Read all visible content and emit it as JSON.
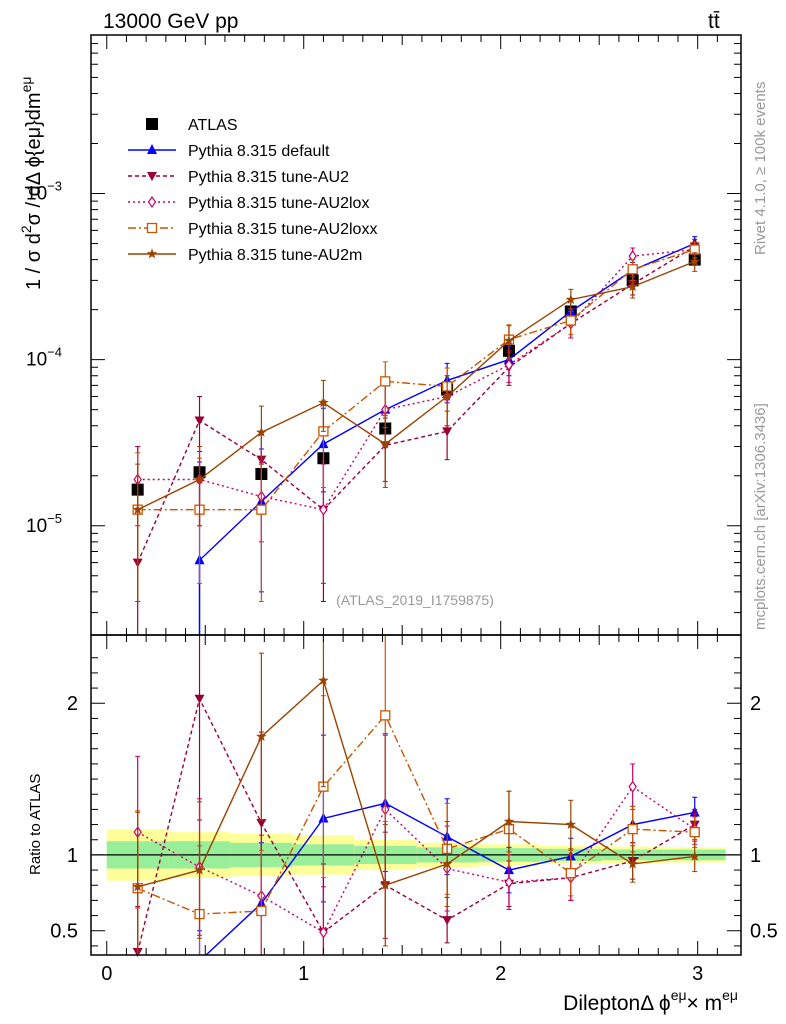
{
  "header": {
    "energy_label": "13000 GeV pp",
    "process_label": "tt̄"
  },
  "side_labels": {
    "rivet": "Rivet 4.1.0, ≥ 100k events",
    "mcplots": "mcplots.cern.ch [arXiv:1306.3436]"
  },
  "chart_data": [
    {
      "type": "line",
      "panel": "main",
      "yscale": "log",
      "ylabel_main": "1 / σ  d",
      "ylabel_sup": "2",
      "ylabel_rest": "σ / dΔ ϕ{eμ}dm",
      "ylabel_sup2": "eμ",
      "ylim": [
        2.2e-06,
        0.009
      ],
      "xlim": [
        -0.08,
        3.22
      ],
      "y_ticks": [
        {
          "value": 1e-05,
          "label": "10",
          "exp": "−5"
        },
        {
          "value": 0.0001,
          "label": "10",
          "exp": "−4"
        },
        {
          "value": 0.001,
          "label": "10",
          "exp": "−3"
        }
      ],
      "watermark": "(ATLAS_2019_I1759875)",
      "legend_position": "top-left",
      "x": [
        0.157,
        0.471,
        0.785,
        1.1,
        1.414,
        1.728,
        2.042,
        2.356,
        2.67,
        2.985
      ],
      "series": [
        {
          "name": "ATLAS",
          "style": "data",
          "color": "#000000",
          "values": [
            1.65e-05,
            2.1e-05,
            2.05e-05,
            2.55e-05,
            3.85e-05,
            6.6e-05,
            0.000113,
            0.000195,
            0.0003,
            0.0004
          ]
        },
        {
          "name": "Pythia 8.315 default",
          "style": "default",
          "color": "#0000ff",
          "values": [
            null,
            6.2e-06,
            1.4e-05,
            3.1e-05,
            5e-05,
            7.5e-05,
            0.0001,
            0.000195,
            0.000345,
            0.0005
          ],
          "err_lo": [
            null,
            4.5e-06,
            1e-05,
            1.5e-05,
            2e-05,
            2e-05,
            2e-05,
            3e-05,
            4e-05,
            5e-05
          ],
          "err_hi": [
            null,
            1.8e-05,
            1.5e-05,
            2e-05,
            2.5e-05,
            2e-05,
            2e-05,
            3e-05,
            4e-05,
            5e-05
          ]
        },
        {
          "name": "Pythia 8.315 tune-AU2",
          "style": "au2",
          "color": "#990033",
          "values": [
            6e-06,
            4.3e-05,
            2.5e-05,
            1.25e-05,
            3.05e-05,
            3.7e-05,
            9e-05,
            0.000165,
            0.000285,
            0.00048
          ],
          "err_lo": [
            4.2e-06,
            1.5e-05,
            1e-05,
            9e-06,
            1.2e-05,
            1.2e-05,
            2e-05,
            3e-05,
            4e-05,
            5e-05
          ],
          "err_hi": [
            2.4e-05,
            1.7e-05,
            1.2e-05,
            1.2e-05,
            1.4e-05,
            1.2e-05,
            2e-05,
            3e-05,
            4e-05,
            5e-05
          ]
        },
        {
          "name": "Pythia 8.315 tune-AU2lox",
          "style": "au2lox",
          "color": "#cc0066",
          "values": [
            1.9e-05,
            1.9e-05,
            1.5e-05,
            1.25e-05,
            5e-05,
            6e-05,
            9.3e-05,
            0.000165,
            0.00042,
            0.00046
          ],
          "err_lo": [
            9e-06,
            9e-06,
            7e-06,
            8e-06,
            2e-05,
            2e-05,
            2e-05,
            3e-05,
            5e-05,
            5e-05
          ],
          "err_hi": [
            1.1e-05,
            1.1e-05,
            9e-06,
            1.1e-05,
            2e-05,
            2e-05,
            2e-05,
            3e-05,
            5e-05,
            5e-05
          ]
        },
        {
          "name": "Pythia 8.315 tune-AU2loxx",
          "style": "au2loxx",
          "color": "#cc5500",
          "values": [
            1.25e-05,
            1.25e-05,
            1.25e-05,
            3.7e-05,
            7.4e-05,
            6.9e-05,
            0.000132,
            0.000172,
            0.00035,
            0.00046
          ],
          "err_lo": [
            9e-06,
            8e-06,
            9e-06,
            2e-05,
            3.5e-05,
            2e-05,
            3e-05,
            3e-05,
            5e-05,
            5e-05
          ],
          "err_hi": [
            1.5e-05,
            1.3e-05,
            1.1e-05,
            2e-05,
            2.3e-05,
            2e-05,
            3e-05,
            3e-05,
            5e-05,
            5e-05
          ]
        },
        {
          "name": "Pythia 8.315 tune-AU2m",
          "style": "au2m",
          "color": "#994400",
          "values": [
            1.25e-05,
            1.9e-05,
            3.65e-05,
            5.5e-05,
            3.1e-05,
            6e-05,
            0.00013,
            0.00023,
            0.000275,
            0.00039
          ],
          "err_lo": [
            9e-06,
            9e-06,
            1.3e-05,
            1.8e-05,
            1.4e-05,
            2e-05,
            3e-05,
            3.5e-05,
            4e-05,
            5e-05
          ],
          "err_hi": [
            1.1e-05,
            1.1e-05,
            1.6e-05,
            2e-05,
            1.5e-05,
            2e-05,
            3e-05,
            3.5e-05,
            4e-05,
            5e-05
          ]
        }
      ]
    },
    {
      "type": "line",
      "panel": "ratio",
      "ylabel": "Ratio to ATLAS",
      "xlabel": "DileptonΔ ϕ",
      "xlabel_sup": "eμ",
      "xlabel_mid": "× m",
      "xlabel_sup2": "eμ",
      "ylim": [
        0.34,
        2.45
      ],
      "xlim": [
        -0.08,
        3.22
      ],
      "x_ticks": [
        {
          "value": 0,
          "label": "0"
        },
        {
          "value": 1,
          "label": "1"
        },
        {
          "value": 2,
          "label": "2"
        },
        {
          "value": 3,
          "label": "3"
        }
      ],
      "y_ticks": [
        {
          "value": 0.5,
          "label": "0.5"
        },
        {
          "value": 1,
          "label": "1"
        },
        {
          "value": 2,
          "label": "2"
        }
      ],
      "bin_edges": [
        0,
        0.314,
        0.628,
        0.942,
        1.257,
        1.571,
        1.885,
        2.199,
        2.513,
        2.827,
        3.142
      ],
      "band_green_halfwidth": [
        0.09,
        0.09,
        0.08,
        0.07,
        0.06,
        0.05,
        0.045,
        0.04,
        0.035,
        0.035
      ],
      "band_yellow_halfwidth": [
        0.17,
        0.15,
        0.14,
        0.13,
        0.1,
        0.08,
        0.07,
        0.06,
        0.055,
        0.05
      ],
      "x": [
        0.157,
        0.471,
        0.785,
        1.1,
        1.414,
        1.728,
        2.042,
        2.356,
        2.67,
        2.985
      ],
      "series": [
        {
          "name": "Pythia 8.315 default",
          "style": "default",
          "color": "#0000ff",
          "values": [
            null,
            0.3,
            0.68,
            1.24,
            1.34,
            1.12,
            0.9,
            0.99,
            1.2,
            1.28
          ],
          "err": [
            0,
            0.2,
            0.4,
            0.55,
            0.45,
            0.25,
            0.15,
            0.12,
            0.12,
            0.1
          ]
        },
        {
          "name": "Pythia 8.315 tune-AU2",
          "style": "au2",
          "color": "#990033",
          "values": [
            0.36,
            2.03,
            1.21,
            0.49,
            0.8,
            0.57,
            0.81,
            0.85,
            0.96,
            1.2
          ],
          "err": [
            0.3,
            0.8,
            0.6,
            0.45,
            0.35,
            0.15,
            0.15,
            0.15,
            0.12,
            0.1
          ]
        },
        {
          "name": "Pythia 8.315 tune-AU2lox",
          "style": "au2lox",
          "color": "#cc0066",
          "values": [
            1.15,
            0.92,
            0.73,
            0.49,
            1.3,
            0.91,
            0.82,
            0.85,
            1.45,
            1.17
          ],
          "err": [
            0.5,
            0.45,
            0.4,
            0.3,
            0.5,
            0.28,
            0.18,
            0.15,
            0.15,
            0.1
          ]
        },
        {
          "name": "Pythia 8.315 tune-AU2loxx",
          "style": "au2loxx",
          "color": "#cc5500",
          "values": [
            0.78,
            0.61,
            0.63,
            1.45,
            1.92,
            1.04,
            1.17,
            0.88,
            1.17,
            1.15
          ],
          "err": [
            0.5,
            0.45,
            0.4,
            0.6,
            0.7,
            0.3,
            0.25,
            0.15,
            0.15,
            0.1
          ]
        },
        {
          "name": "Pythia 8.315 tune-AU2m",
          "style": "au2m",
          "color": "#994400",
          "values": [
            0.79,
            0.9,
            1.78,
            2.15,
            0.8,
            0.94,
            1.22,
            1.2,
            0.94,
            0.99
          ],
          "err": [
            0.5,
            0.45,
            0.55,
            0.7,
            0.4,
            0.28,
            0.2,
            0.16,
            0.12,
            0.1
          ]
        }
      ]
    }
  ]
}
